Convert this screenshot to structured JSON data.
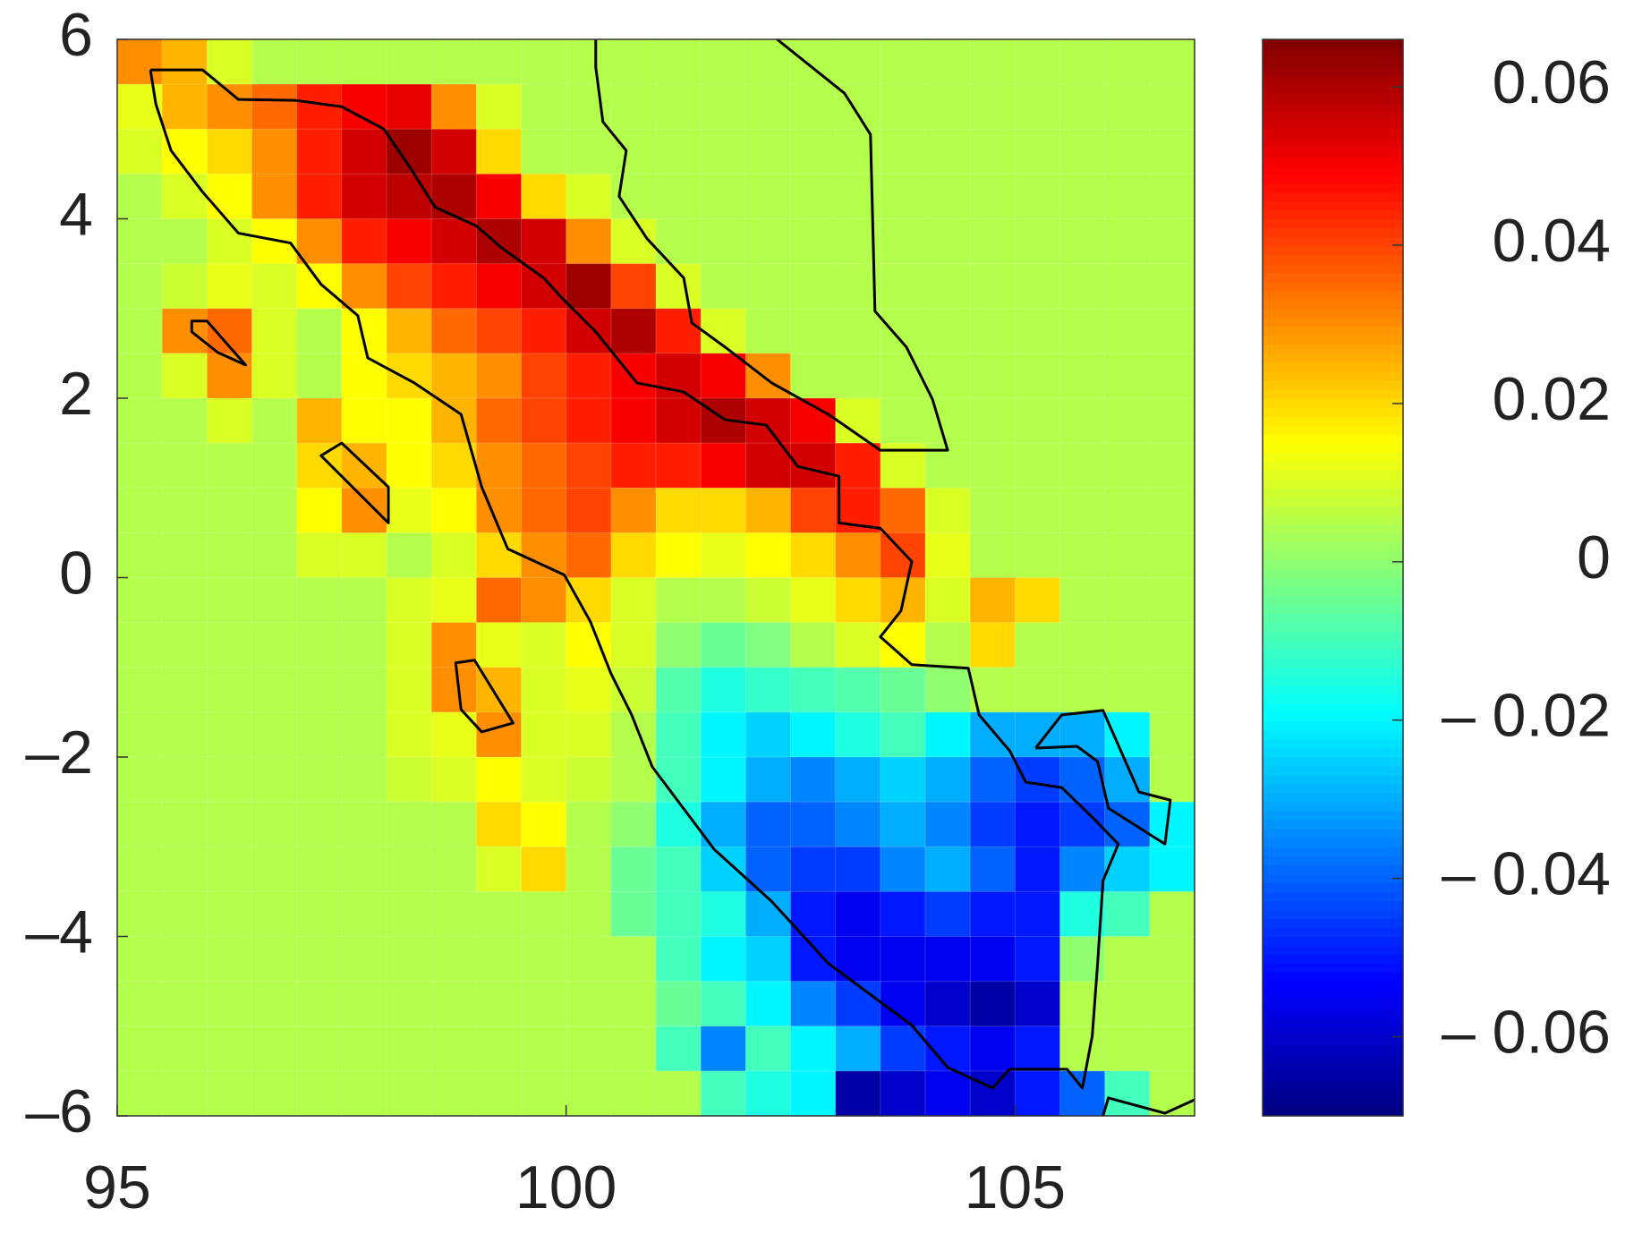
{
  "chart_data": {
    "type": "heatmap",
    "colormap": "jet",
    "xlim": [
      95,
      107
    ],
    "ylim": [
      -6,
      6
    ],
    "xticks": [
      95,
      100,
      105
    ],
    "yticks": [
      6,
      4,
      2,
      0,
      {
        "value": -2,
        "label": "–2"
      },
      {
        "value": -4,
        "label": "–4"
      },
      {
        "value": -6,
        "label": "–6"
      }
    ],
    "clim": [
      -0.07,
      0.066
    ],
    "cticks": [
      0.06,
      0.04,
      0.02,
      0,
      {
        "value": -0.02,
        "label": "– 0.02"
      },
      {
        "value": -0.04,
        "label": "– 0.04"
      },
      {
        "value": -0.06,
        "label": "– 0.06"
      }
    ],
    "z": [
      [
        0.03,
        0.025,
        0.01,
        0.005,
        0.005,
        0.005,
        0.005,
        0.005,
        0.005,
        0.005,
        0.005,
        0.005,
        0.005,
        0.005,
        0.005,
        0.005,
        0.005,
        0.005,
        0.005,
        0.005,
        0.005,
        0.005,
        0.005,
        0.005
      ],
      [
        0.012,
        0.025,
        0.03,
        0.035,
        0.045,
        0.05,
        0.052,
        0.03,
        0.01,
        0.005,
        0.005,
        0.005,
        0.005,
        0.005,
        0.005,
        0.005,
        0.005,
        0.005,
        0.005,
        0.005,
        0.005,
        0.005,
        0.005,
        0.005
      ],
      [
        0.01,
        0.015,
        0.02,
        0.03,
        0.045,
        0.055,
        0.062,
        0.055,
        0.02,
        0.005,
        0.005,
        0.005,
        0.005,
        0.005,
        0.005,
        0.005,
        0.005,
        0.005,
        0.005,
        0.005,
        0.005,
        0.005,
        0.005,
        0.005
      ],
      [
        0.005,
        0.01,
        0.015,
        0.03,
        0.045,
        0.055,
        0.058,
        0.06,
        0.05,
        0.02,
        0.01,
        0.005,
        0.005,
        0.005,
        0.005,
        0.005,
        0.005,
        0.005,
        0.005,
        0.005,
        0.005,
        0.005,
        0.005,
        0.005
      ],
      [
        0.005,
        0.005,
        0.01,
        0.015,
        0.03,
        0.045,
        0.05,
        0.055,
        0.06,
        0.055,
        0.03,
        0.01,
        0.005,
        0.005,
        0.005,
        0.005,
        0.005,
        0.005,
        0.005,
        0.005,
        0.005,
        0.005,
        0.005,
        0.005
      ],
      [
        0.005,
        0.008,
        0.012,
        0.01,
        0.015,
        0.03,
        0.04,
        0.045,
        0.05,
        0.055,
        0.062,
        0.04,
        0.01,
        0.005,
        0.005,
        0.005,
        0.005,
        0.005,
        0.005,
        0.005,
        0.005,
        0.005,
        0.005,
        0.005
      ],
      [
        0.005,
        0.03,
        0.035,
        0.01,
        0.005,
        0.015,
        0.025,
        0.035,
        0.04,
        0.045,
        0.055,
        0.06,
        0.045,
        0.01,
        0.005,
        0.005,
        0.005,
        0.005,
        0.005,
        0.005,
        0.005,
        0.005,
        0.005,
        0.005
      ],
      [
        0.005,
        0.01,
        0.03,
        0.01,
        0.005,
        0.015,
        0.02,
        0.025,
        0.03,
        0.04,
        0.045,
        0.05,
        0.055,
        0.05,
        0.03,
        0.005,
        0.005,
        0.005,
        0.005,
        0.005,
        0.005,
        0.005,
        0.005,
        0.005
      ],
      [
        0.005,
        0.005,
        0.01,
        0.005,
        0.025,
        0.015,
        0.015,
        0.025,
        0.035,
        0.04,
        0.045,
        0.05,
        0.055,
        0.06,
        0.055,
        0.05,
        0.01,
        0.005,
        0.005,
        0.005,
        0.005,
        0.005,
        0.005,
        0.005
      ],
      [
        0.005,
        0.005,
        0.005,
        0.005,
        0.02,
        0.025,
        0.015,
        0.02,
        0.03,
        0.035,
        0.04,
        0.045,
        0.045,
        0.05,
        0.055,
        0.055,
        0.045,
        0.01,
        0.005,
        0.005,
        0.005,
        0.005,
        0.005,
        0.005
      ],
      [
        0.005,
        0.005,
        0.005,
        0.005,
        0.015,
        0.03,
        0.012,
        0.015,
        0.03,
        0.035,
        0.04,
        0.03,
        0.02,
        0.02,
        0.025,
        0.04,
        0.045,
        0.035,
        0.01,
        0.005,
        0.005,
        0.005,
        0.005,
        0.005
      ],
      [
        0.005,
        0.005,
        0.005,
        0.005,
        0.01,
        0.01,
        0.005,
        0.01,
        0.02,
        0.03,
        0.035,
        0.02,
        0.015,
        0.012,
        0.015,
        0.02,
        0.03,
        0.04,
        0.012,
        0.005,
        0.005,
        0.005,
        0.005,
        0.005
      ],
      [
        0.005,
        0.005,
        0.005,
        0.005,
        0.005,
        0.005,
        0.01,
        0.012,
        0.035,
        0.03,
        0.02,
        0.01,
        0.005,
        0.005,
        0.008,
        0.012,
        0.02,
        0.025,
        0.01,
        0.025,
        0.02,
        0.005,
        0.005,
        0.005
      ],
      [
        0.005,
        0.005,
        0.005,
        0.005,
        0.005,
        0.005,
        0.01,
        0.03,
        0.012,
        0.01,
        0.015,
        0.01,
        0,
        -0.005,
        -0.002,
        0.005,
        0.01,
        0.015,
        0.005,
        0.02,
        0.005,
        0.005,
        0.005,
        0.005
      ],
      [
        0.005,
        0.005,
        0.005,
        0.005,
        0.005,
        0.005,
        0.01,
        0.03,
        0.025,
        0.01,
        0.012,
        0.008,
        -0.008,
        -0.015,
        -0.012,
        -0.01,
        -0.008,
        -0.005,
        0,
        0.005,
        0.005,
        0.005,
        0.005,
        0.005
      ],
      [
        0.005,
        0.005,
        0.005,
        0.005,
        0.005,
        0.005,
        0.01,
        0.012,
        0.03,
        0.01,
        0.01,
        0.005,
        -0.01,
        -0.02,
        -0.025,
        -0.02,
        -0.015,
        -0.01,
        -0.02,
        -0.03,
        -0.03,
        -0.03,
        -0.02,
        0.005
      ],
      [
        0.005,
        0.005,
        0.005,
        0.005,
        0.005,
        0.005,
        0.008,
        0.01,
        0.015,
        0.01,
        0.008,
        0.005,
        -0.01,
        -0.02,
        -0.03,
        -0.035,
        -0.03,
        -0.025,
        -0.03,
        -0.04,
        -0.045,
        -0.04,
        -0.03,
        0.005
      ],
      [
        0.005,
        0.005,
        0.005,
        0.005,
        0.005,
        0.005,
        0.005,
        0.005,
        0.02,
        0.015,
        0.005,
        0,
        -0.015,
        -0.03,
        -0.04,
        -0.04,
        -0.035,
        -0.03,
        -0.035,
        -0.045,
        -0.05,
        -0.045,
        -0.04,
        -0.02
      ],
      [
        0.005,
        0.005,
        0.005,
        0.005,
        0.005,
        0.005,
        0.005,
        0.005,
        0.01,
        0.02,
        0.005,
        -0.005,
        -0.01,
        -0.025,
        -0.04,
        -0.045,
        -0.045,
        -0.035,
        -0.03,
        -0.04,
        -0.05,
        -0.035,
        -0.025,
        -0.02
      ],
      [
        0.005,
        0.005,
        0.005,
        0.005,
        0.005,
        0.005,
        0.005,
        0.005,
        0.005,
        0.005,
        0.005,
        -0.005,
        -0.01,
        -0.015,
        -0.03,
        -0.05,
        -0.055,
        -0.05,
        -0.045,
        -0.05,
        -0.05,
        -0.015,
        -0.01,
        0.005
      ],
      [
        0.005,
        0.005,
        0.005,
        0.005,
        0.005,
        0.005,
        0.005,
        0.005,
        0.005,
        0.005,
        0.005,
        0.005,
        -0.01,
        -0.02,
        -0.025,
        -0.05,
        -0.055,
        -0.055,
        -0.055,
        -0.055,
        -0.05,
        0,
        0.005,
        0.005
      ],
      [
        0.005,
        0.005,
        0.005,
        0.005,
        0.005,
        0.005,
        0.005,
        0.005,
        0.005,
        0.005,
        0.005,
        0.005,
        -0.005,
        -0.01,
        -0.02,
        -0.035,
        -0.045,
        -0.055,
        -0.06,
        -0.065,
        -0.06,
        0.005,
        0.005,
        0.005
      ],
      [
        0.005,
        0.005,
        0.005,
        0.005,
        0.005,
        0.005,
        0.005,
        0.005,
        0.005,
        0.005,
        0.005,
        0.005,
        -0.01,
        -0.035,
        -0.01,
        -0.02,
        -0.03,
        -0.045,
        -0.05,
        -0.055,
        -0.05,
        0.005,
        0.005,
        0.005
      ],
      [
        0.005,
        0.005,
        0.005,
        0.005,
        0.005,
        0.005,
        0.005,
        0.005,
        0.005,
        0.005,
        0.005,
        0.005,
        0.005,
        -0.01,
        -0.015,
        -0.02,
        -0.065,
        -0.06,
        -0.055,
        -0.06,
        -0.05,
        -0.04,
        -0.01,
        0.005
      ]
    ]
  }
}
